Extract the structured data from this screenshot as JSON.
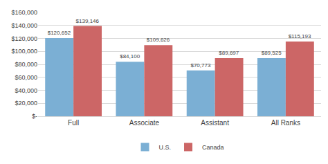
{
  "chart_data": {
    "type": "bar",
    "categories": [
      "Full",
      "Associate",
      "Assistant",
      "All Ranks"
    ],
    "series": [
      {
        "name": "U.S.",
        "color": "#7bafd4",
        "values": [
          120652,
          84100,
          70773,
          89525
        ],
        "value_labels": [
          "$120,652",
          "$84,100",
          "$70,773",
          "$89,525"
        ]
      },
      {
        "name": "Canada",
        "color": "#cc6666",
        "values": [
          139146,
          109626,
          89697,
          115193
        ],
        "value_labels": [
          "$139,146",
          "$109,626",
          "$89,697",
          "$115,193"
        ]
      }
    ],
    "ylim": [
      0,
      160000
    ],
    "yticks": [
      {
        "value": 0,
        "label": "$-"
      },
      {
        "value": 20000,
        "label": "$20,000"
      },
      {
        "value": 40000,
        "label": "$40,000"
      },
      {
        "value": 60000,
        "label": "$60,000"
      },
      {
        "value": 80000,
        "label": "$80,000"
      },
      {
        "value": 100000,
        "label": "$100,000"
      },
      {
        "value": 120000,
        "label": "$120,000"
      },
      {
        "value": 140000,
        "label": "$140,000"
      },
      {
        "value": 160000,
        "label": "$160,000"
      }
    ],
    "grid": true,
    "data_labels": true,
    "legend": "bottom"
  }
}
